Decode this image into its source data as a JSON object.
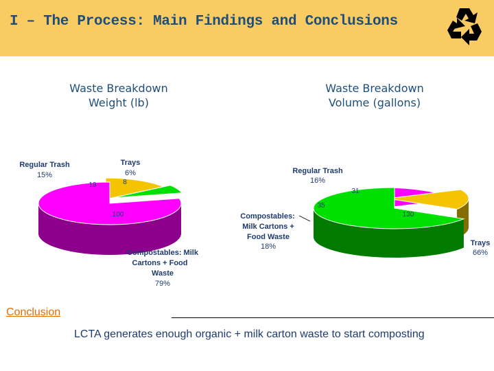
{
  "header": {
    "title": "I – The Process: Main Findings and Conclusions"
  },
  "icons": {
    "logo": "recycle-icon"
  },
  "colors": {
    "header_bg": "#f9cb63",
    "title": "#1f4e79",
    "conclusion_heading": "#e36c09"
  },
  "chart_data": [
    {
      "type": "pie",
      "title": "Waste Breakdown Weight (lb)",
      "title_lines": [
        "Waste Breakdown",
        "Weight (lb)"
      ],
      "slices": [
        {
          "name": "Regular Trash",
          "value": 19,
          "percent": "15%",
          "color": "#f5c400"
        },
        {
          "name": "Trays",
          "value": 8,
          "percent": "6%",
          "color": "#00e000"
        },
        {
          "name": "Compostables: Milk Cartons + Food Waste",
          "value": 100,
          "percent": "79%",
          "color": "#ff00ff"
        }
      ]
    },
    {
      "type": "pie",
      "title": "Waste Breakdown Volume (gallons)",
      "title_lines": [
        "Waste Breakdown",
        "Volume (gallons)"
      ],
      "slices": [
        {
          "name": "Regular Trash",
          "value": 31,
          "percent": "16%",
          "color": "#f5c400"
        },
        {
          "name": "Compostables: Milk Cartons + Food Waste",
          "value": 35,
          "percent": "18%",
          "color": "#ff00ff"
        },
        {
          "name": "Trays",
          "value": 130,
          "percent": "66%",
          "color": "#00e000"
        }
      ]
    }
  ],
  "labels": {
    "weight": {
      "regular": [
        "Regular Trash",
        "15%"
      ],
      "trays": [
        "Trays",
        "6%"
      ],
      "compost": [
        "Compostables: Milk",
        "Cartons + Food",
        "Waste",
        "79%"
      ]
    },
    "volume": {
      "regular": [
        "Regular Trash",
        "16%"
      ],
      "compost": [
        "Compostables:",
        "Milk Cartons +",
        "Food Waste",
        "18%"
      ],
      "trays": [
        "Trays",
        "66%"
      ]
    }
  },
  "conclusion": {
    "heading": "Conclusion",
    "text": "LCTA generates enough organic + milk carton waste to start composting"
  }
}
